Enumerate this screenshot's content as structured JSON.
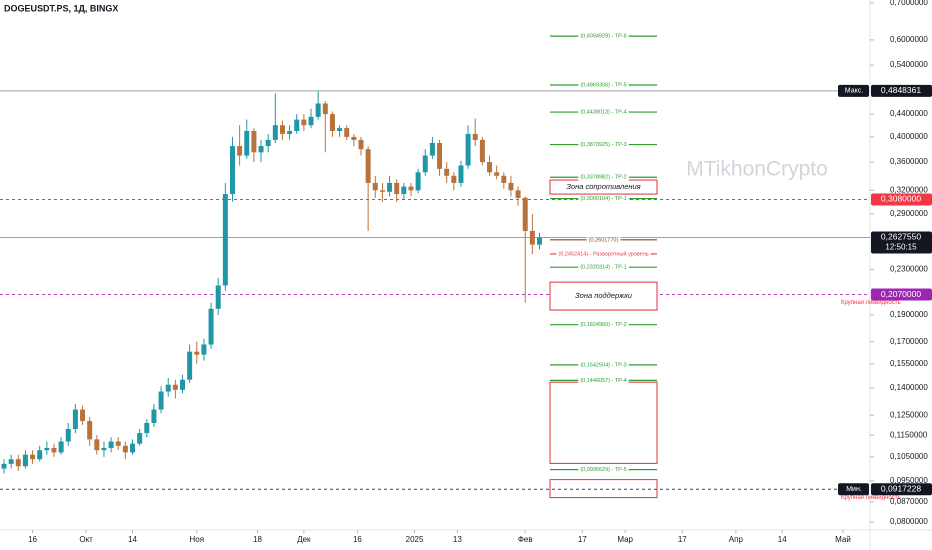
{
  "chart_data": {
    "type": "candlestick",
    "title": "DOGEUSDT.PS, 1Д, BINGX",
    "watermark": "MTikhonCrypto",
    "log_scale": true,
    "up_color": "#2196a6",
    "down_color": "#b8733c",
    "xlim": [
      -1,
      243
    ],
    "ylim": [
      0.08,
      0.7
    ],
    "xticks": [
      {
        "value": 8,
        "label": "16"
      },
      {
        "value": 23,
        "label": "Окт"
      },
      {
        "value": 36,
        "label": "14"
      },
      {
        "value": 54,
        "label": "Ноя"
      },
      {
        "value": 71,
        "label": "18"
      },
      {
        "value": 84,
        "label": "Дек"
      },
      {
        "value": 99,
        "label": "16"
      },
      {
        "value": 115,
        "label": "2025"
      },
      {
        "value": 127,
        "label": "13"
      },
      {
        "value": 146,
        "label": "Фев"
      },
      {
        "value": 162,
        "label": "17"
      },
      {
        "value": 174,
        "label": "Мар"
      },
      {
        "value": 190,
        "label": "17"
      },
      {
        "value": 205,
        "label": "Апр"
      },
      {
        "value": 218,
        "label": "14"
      },
      {
        "value": 235,
        "label": "Май"
      }
    ],
    "yticks": [
      {
        "value": 0.7,
        "label": "0,7000000"
      },
      {
        "value": 0.6,
        "label": "0,6000000"
      },
      {
        "value": 0.54,
        "label": "0,5400000"
      },
      {
        "value": 0.44,
        "label": "0,4400000"
      },
      {
        "value": 0.4,
        "label": "0,4000000"
      },
      {
        "value": 0.36,
        "label": "0,3600000"
      },
      {
        "value": 0.32,
        "label": "0,3200000"
      },
      {
        "value": 0.29,
        "label": "0,2900000"
      },
      {
        "value": 0.23,
        "label": "0,2300000"
      },
      {
        "value": 0.19,
        "label": "0,1900000"
      },
      {
        "value": 0.17,
        "label": "0,1700000"
      },
      {
        "value": 0.155,
        "label": "0,1550000"
      },
      {
        "value": 0.14,
        "label": "0,1400000"
      },
      {
        "value": 0.125,
        "label": "0,1250000"
      },
      {
        "value": 0.115,
        "label": "0,1150000"
      },
      {
        "value": 0.105,
        "label": "0,1050000"
      },
      {
        "value": 0.095,
        "label": "0,0950000"
      },
      {
        "value": 0.087,
        "label": "0,0870000"
      },
      {
        "value": 0.08,
        "label": "0,0800000"
      }
    ],
    "x": [
      0,
      2,
      4,
      6,
      8,
      10,
      12,
      14,
      16,
      18,
      20,
      22,
      24,
      26,
      28,
      30,
      32,
      34,
      36,
      38,
      40,
      42,
      44,
      46,
      48,
      50,
      52,
      54,
      56,
      58,
      60,
      62,
      64,
      66,
      68,
      70,
      72,
      74,
      76,
      78,
      80,
      82,
      84,
      86,
      88,
      90,
      92,
      94,
      96,
      98,
      100,
      102,
      104,
      106,
      108,
      110,
      112,
      114,
      116,
      118,
      120,
      122,
      124,
      126,
      128,
      130,
      132,
      134,
      136,
      138,
      140,
      142,
      144,
      146,
      148,
      150
    ],
    "ohlc": [
      [
        0.1,
        0.104,
        0.098,
        0.102
      ],
      [
        0.102,
        0.106,
        0.1,
        0.104
      ],
      [
        0.104,
        0.106,
        0.099,
        0.101
      ],
      [
        0.101,
        0.108,
        0.1,
        0.106
      ],
      [
        0.106,
        0.108,
        0.102,
        0.104
      ],
      [
        0.104,
        0.11,
        0.103,
        0.108
      ],
      [
        0.108,
        0.112,
        0.106,
        0.109
      ],
      [
        0.109,
        0.111,
        0.105,
        0.107
      ],
      [
        0.107,
        0.114,
        0.106,
        0.112
      ],
      [
        0.112,
        0.121,
        0.11,
        0.118
      ],
      [
        0.118,
        0.131,
        0.116,
        0.128
      ],
      [
        0.128,
        0.13,
        0.12,
        0.122
      ],
      [
        0.122,
        0.124,
        0.11,
        0.113
      ],
      [
        0.113,
        0.115,
        0.106,
        0.108
      ],
      [
        0.108,
        0.112,
        0.105,
        0.109
      ],
      [
        0.109,
        0.114,
        0.107,
        0.112
      ],
      [
        0.112,
        0.114,
        0.108,
        0.11
      ],
      [
        0.11,
        0.112,
        0.104,
        0.107
      ],
      [
        0.107,
        0.113,
        0.106,
        0.111
      ],
      [
        0.111,
        0.118,
        0.11,
        0.116
      ],
      [
        0.116,
        0.123,
        0.114,
        0.121
      ],
      [
        0.121,
        0.131,
        0.119,
        0.128
      ],
      [
        0.128,
        0.141,
        0.126,
        0.138
      ],
      [
        0.138,
        0.146,
        0.135,
        0.142
      ],
      [
        0.142,
        0.145,
        0.134,
        0.139
      ],
      [
        0.139,
        0.148,
        0.137,
        0.145
      ],
      [
        0.145,
        0.168,
        0.143,
        0.163
      ],
      [
        0.163,
        0.17,
        0.155,
        0.161
      ],
      [
        0.161,
        0.172,
        0.157,
        0.168
      ],
      [
        0.168,
        0.2,
        0.165,
        0.195
      ],
      [
        0.195,
        0.222,
        0.19,
        0.215
      ],
      [
        0.215,
        0.33,
        0.21,
        0.315
      ],
      [
        0.315,
        0.4,
        0.305,
        0.385
      ],
      [
        0.385,
        0.42,
        0.355,
        0.37
      ],
      [
        0.37,
        0.43,
        0.365,
        0.41
      ],
      [
        0.41,
        0.415,
        0.36,
        0.375
      ],
      [
        0.375,
        0.395,
        0.36,
        0.385
      ],
      [
        0.385,
        0.405,
        0.375,
        0.395
      ],
      [
        0.395,
        0.48,
        0.39,
        0.42
      ],
      [
        0.42,
        0.428,
        0.395,
        0.405
      ],
      [
        0.405,
        0.42,
        0.395,
        0.41
      ],
      [
        0.41,
        0.44,
        0.405,
        0.43
      ],
      [
        0.43,
        0.44,
        0.41,
        0.42
      ],
      [
        0.42,
        0.45,
        0.415,
        0.435
      ],
      [
        0.435,
        0.485,
        0.43,
        0.46
      ],
      [
        0.46,
        0.465,
        0.375,
        0.44
      ],
      [
        0.44,
        0.445,
        0.4,
        0.41
      ],
      [
        0.41,
        0.42,
        0.4,
        0.415
      ],
      [
        0.415,
        0.42,
        0.395,
        0.4
      ],
      [
        0.4,
        0.405,
        0.385,
        0.395
      ],
      [
        0.395,
        0.4,
        0.37,
        0.38
      ],
      [
        0.38,
        0.385,
        0.27,
        0.33
      ],
      [
        0.33,
        0.34,
        0.31,
        0.32
      ],
      [
        0.32,
        0.33,
        0.305,
        0.318
      ],
      [
        0.318,
        0.34,
        0.312,
        0.33
      ],
      [
        0.33,
        0.335,
        0.305,
        0.315
      ],
      [
        0.315,
        0.33,
        0.308,
        0.325
      ],
      [
        0.325,
        0.33,
        0.312,
        0.32
      ],
      [
        0.32,
        0.35,
        0.316,
        0.345
      ],
      [
        0.345,
        0.38,
        0.34,
        0.37
      ],
      [
        0.37,
        0.4,
        0.365,
        0.39
      ],
      [
        0.39,
        0.395,
        0.34,
        0.35
      ],
      [
        0.35,
        0.36,
        0.33,
        0.34
      ],
      [
        0.34,
        0.345,
        0.32,
        0.33
      ],
      [
        0.33,
        0.362,
        0.325,
        0.355
      ],
      [
        0.355,
        0.42,
        0.35,
        0.405
      ],
      [
        0.405,
        0.432,
        0.385,
        0.395
      ],
      [
        0.395,
        0.4,
        0.355,
        0.36
      ],
      [
        0.36,
        0.37,
        0.34,
        0.345
      ],
      [
        0.345,
        0.355,
        0.335,
        0.34
      ],
      [
        0.34,
        0.345,
        0.322,
        0.33
      ],
      [
        0.33,
        0.34,
        0.312,
        0.32
      ],
      [
        0.32,
        0.325,
        0.3,
        0.31
      ],
      [
        0.31,
        0.312,
        0.2,
        0.27
      ],
      [
        0.27,
        0.29,
        0.245,
        0.255
      ],
      [
        0.255,
        0.268,
        0.25,
        0.2628
      ]
    ],
    "hlines": [
      {
        "value": 0.4848361,
        "label": "0,4848361",
        "name": "Макс.",
        "color": "#a0a0a0",
        "tag_color": "#131722",
        "dash": false
      },
      {
        "value": 0.308,
        "label": "0,3080000",
        "color": "#f23645",
        "tag_color": "#f23645",
        "dash": true
      },
      {
        "value": 0.262755,
        "label": "0,2627550",
        "countdown": "12:50:15",
        "color": "#a0a0a0",
        "tag_color": "#131722",
        "dash": false
      },
      {
        "value": 0.207,
        "label": "0,2070000",
        "color": "#b040c0",
        "tag_color": "#9c27b0",
        "dash": true,
        "note": "Крупная ликвидность"
      },
      {
        "value": 0.0917228,
        "label": "0,0917228",
        "name": "Мин.",
        "color": "#3a3f8f",
        "tag_color": "#131722",
        "dash": true,
        "note": "Крупная ликвидность"
      }
    ],
    "levels": [
      {
        "value": 0.6094929,
        "label": "(0,6094929) - TP-6",
        "color": "#2e9e2e"
      },
      {
        "value": 0.4969306,
        "label": "(0,4969306) - TP-5",
        "color": "#2e9e2e"
      },
      {
        "value": 0.4438013,
        "label": "(0,4438013) - TP-4",
        "color": "#2e9e2e"
      },
      {
        "value": 0.3873925,
        "label": "(0,3873925) - TP-3",
        "color": "#2e9e2e"
      },
      {
        "value": 0.3378982,
        "label": "(0,3378982) - TP-2",
        "color": "#2e9e2e"
      },
      {
        "value": 0.3090104,
        "label": "(0,3090104) - TP-1",
        "color": "#2e9e2e"
      },
      {
        "value": 0.260177,
        "label": "(0,2601770)",
        "color": "#8a4a1a"
      },
      {
        "value": 0.2452414,
        "label": "(0,2452414) - Разворотный уровень",
        "color": "#f23645"
      },
      {
        "value": 0.2320314,
        "label": "(0,2320314) - TP-1",
        "color": "#2e9e2e"
      },
      {
        "value": 0.182496,
        "label": "(0,1824960) - TP-2",
        "color": "#2e9e2e"
      },
      {
        "value": 0.1542504,
        "label": "(0,1542504) - TP-3",
        "color": "#2e9e2e"
      },
      {
        "value": 0.1446057,
        "label": "(0,1446057) - TP-4",
        "color": "#2e9e2e"
      },
      {
        "value": 0.0995629,
        "label": "(0,0995629) - TP-5",
        "color": "#2e9e2e"
      }
    ],
    "zones": [
      {
        "top": 0.334,
        "bottom": 0.315,
        "label": "Зона сопротивления",
        "color": "#e0303a"
      },
      {
        "top": 0.218,
        "bottom": 0.194,
        "label": "Зона поддержки",
        "color": "#e0303a"
      },
      {
        "top": 0.1435,
        "bottom": 0.1022,
        "color": "#e0303a"
      },
      {
        "top": 0.0955,
        "bottom": 0.0886,
        "color": "#e0303a"
      }
    ]
  }
}
